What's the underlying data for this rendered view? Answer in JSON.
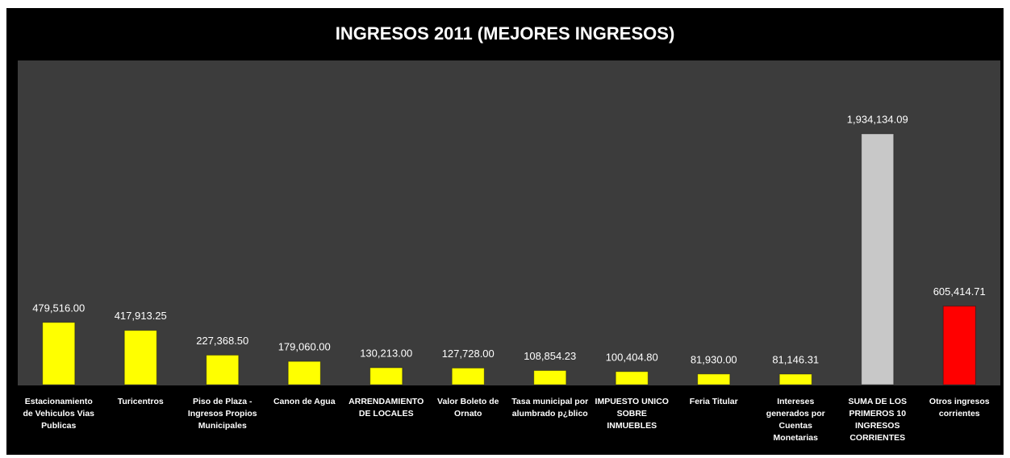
{
  "chart_data": {
    "type": "bar",
    "title": "INGRESOS 2011 (MEJORES INGRESOS)",
    "categories": [
      "Estacionamiento de Vehiculos Vias Publicas",
      "Turicentros",
      "Piso de Plaza - Ingresos Propios Municipales",
      "Canon de Agua",
      "ARRENDAMIENTO DE LOCALES",
      "Valor Boleto de Ornato",
      "Tasa municipal por alumbrado p¿blico",
      "IMPUESTO UNICO SOBRE INMUEBLES",
      "Feria Titular",
      "Intereses generados por Cuentas Monetarias",
      "SUMA DE LOS PRIMEROS 10 INGRESOS CORRIENTES",
      "Otros ingresos corrientes"
    ],
    "values": [
      479516.0,
      417913.25,
      227368.5,
      179060.0,
      130213.0,
      127728.0,
      108854.23,
      100404.8,
      81930.0,
      81146.31,
      1934134.09,
      605414.71
    ],
    "value_labels": [
      "479,516.00",
      "417,913.25",
      "227,368.50",
      "179,060.00",
      "130,213.00",
      "127,728.00",
      "108,854.23",
      "100,404.80",
      "81,930.00",
      "81,146.31",
      "1,934,134.09",
      "605,414.71"
    ],
    "colors": [
      "#ffff00",
      "#ffff00",
      "#ffff00",
      "#ffff00",
      "#ffff00",
      "#ffff00",
      "#ffff00",
      "#ffff00",
      "#ffff00",
      "#ffff00",
      "#c8c8c8",
      "#ff0000"
    ],
    "ylim": [
      0,
      2500000
    ]
  }
}
